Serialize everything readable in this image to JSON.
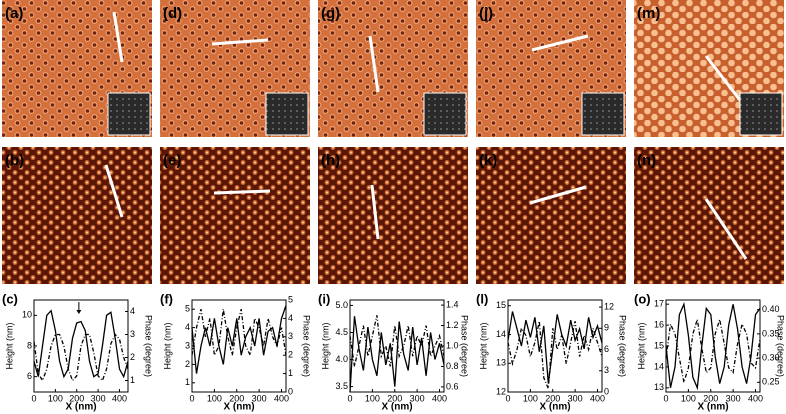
{
  "panels": [
    {
      "label": "(a)"
    },
    {
      "label": "(b)"
    },
    {
      "label": "(d)"
    },
    {
      "label": "(e)"
    },
    {
      "label": "(g)"
    },
    {
      "label": "(h)"
    },
    {
      "label": "(j)"
    },
    {
      "label": "(k)"
    },
    {
      "label": "(m)"
    },
    {
      "label": "(n)"
    }
  ],
  "chart_data": [
    {
      "type": "line",
      "label": "(c)",
      "xlabel": "X (nm)",
      "ylabel": "Height (nm)",
      "y2label": "Phase (degree)",
      "x": [
        0,
        20,
        40,
        60,
        80,
        100,
        120,
        140,
        160,
        180,
        200,
        220,
        240,
        260,
        280,
        300,
        320,
        340,
        360,
        380,
        400,
        420,
        440
      ],
      "xlim": [
        0,
        440
      ],
      "xticks": [
        0,
        100,
        200,
        300,
        400
      ],
      "ylim": [
        5,
        11
      ],
      "yticks": [
        6,
        8,
        10
      ],
      "y2lim": [
        0.5,
        4.5
      ],
      "y2ticks": [
        1,
        2,
        3,
        4
      ],
      "series": [
        {
          "color": "#000000",
          "dash": "solid",
          "values": [
            7,
            6,
            8,
            10,
            10.3,
            9,
            7,
            6,
            6.5,
            8.5,
            9.5,
            9.6,
            9,
            7,
            6,
            6.2,
            8,
            10,
            10.2,
            8.5,
            6.5,
            6,
            7
          ]
        },
        {
          "color": "#000000",
          "dash": "dashdot",
          "axis": "y2",
          "values": [
            2.7,
            1.3,
            1,
            1.5,
            2.5,
            3,
            3,
            2.5,
            1.5,
            1,
            1.2,
            2.5,
            3,
            3,
            2.2,
            1.2,
            1,
            1.5,
            2.6,
            3,
            2.8,
            2,
            1.5
          ]
        }
      ]
    },
    {
      "type": "line",
      "label": "(f)",
      "xlabel": "X (nm)",
      "ylabel": "Height (nm)",
      "y2label": "Phase (degree)",
      "x": [
        0,
        20,
        40,
        60,
        80,
        100,
        120,
        140,
        160,
        180,
        200,
        220,
        240,
        260,
        280,
        300,
        320,
        340,
        360,
        380,
        400,
        420
      ],
      "xlim": [
        0,
        420
      ],
      "xticks": [
        0,
        100,
        200,
        300,
        400
      ],
      "ylim": [
        0.5,
        5.5
      ],
      "yticks": [
        1,
        2,
        3,
        4,
        5
      ],
      "y2lim": [
        0,
        5
      ],
      "y2ticks": [
        0,
        1,
        2,
        3,
        4,
        5
      ],
      "series": [
        {
          "color": "#000000",
          "dash": "solid",
          "values": [
            4,
            1.5,
            3,
            4,
            3,
            4.5,
            3,
            2,
            4,
            3,
            4.5,
            2.5,
            3.5,
            4,
            3,
            4.5,
            2.5,
            3.8,
            4,
            3,
            4.5,
            5.2
          ]
        },
        {
          "color": "#000000",
          "dash": "dashdot",
          "axis": "y2",
          "values": [
            2,
            3.5,
            4.5,
            3,
            4,
            2,
            2.5,
            4.5,
            3,
            2,
            3.5,
            4.5,
            2.5,
            2,
            4,
            3.5,
            2.5,
            4,
            3,
            2.5,
            3.5,
            2
          ]
        }
      ]
    },
    {
      "type": "line",
      "label": "(i)",
      "xlabel": "X (nm)",
      "ylabel": "Height (nm)",
      "y2label": "Phase (degree)",
      "x": [
        0,
        20,
        40,
        60,
        80,
        100,
        120,
        140,
        160,
        180,
        200,
        220,
        240,
        260,
        280,
        300,
        320,
        340,
        360,
        380,
        400,
        420
      ],
      "xlim": [
        0,
        420
      ],
      "xticks": [
        0,
        100,
        200,
        300,
        400
      ],
      "ylim": [
        3.4,
        5.1
      ],
      "yticks": [
        {
          "value": 3.5,
          "label": "3.5"
        },
        {
          "value": 4,
          "label": "4.0"
        },
        {
          "value": 4.5,
          "label": "4.5"
        },
        {
          "value": 5,
          "label": "5.0"
        }
      ],
      "y2lim": [
        0.55,
        1.45
      ],
      "y2ticks": [
        0.6,
        0.8,
        {
          "value": 1,
          "label": "1.0"
        },
        1.2,
        1.4
      ],
      "series": [
        {
          "color": "#000000",
          "dash": "solid",
          "values": [
            3.4,
            4.8,
            4.2,
            3.8,
            4.6,
            4.0,
            3.7,
            4.5,
            3.9,
            4.3,
            3.5,
            4.7,
            4.1,
            3.8,
            4.6,
            3.9,
            4.4,
            3.7,
            4.5,
            4.0,
            4.3,
            3.9
          ]
        },
        {
          "color": "#000000",
          "dash": "dashdot",
          "axis": "y2",
          "values": [
            1.1,
            0.8,
            1.0,
            1.2,
            0.9,
            1.1,
            1.3,
            0.9,
            1.0,
            0.8,
            1.2,
            0.9,
            1.0,
            1.2,
            0.9,
            1.1,
            1.0,
            1.2,
            0.9,
            1.0,
            1.1,
            0.9
          ]
        }
      ]
    },
    {
      "type": "line",
      "label": "(l)",
      "xlabel": "X (nm)",
      "ylabel": "Height (nm)",
      "y2label": "Phase (degree)",
      "x": [
        0,
        20,
        40,
        60,
        80,
        100,
        120,
        140,
        160,
        180,
        200,
        220,
        240,
        260,
        280,
        300,
        320,
        340,
        360,
        380,
        400,
        420
      ],
      "xlim": [
        0,
        420
      ],
      "xticks": [
        0,
        100,
        200,
        300,
        400
      ],
      "ylim": [
        12,
        15.2
      ],
      "yticks": [
        12,
        13,
        14,
        15
      ],
      "y2lim": [
        0,
        13
      ],
      "y2ticks": [
        0,
        3,
        6,
        9,
        12
      ],
      "series": [
        {
          "color": "#000000",
          "dash": "solid",
          "values": [
            13.8,
            14.8,
            14.2,
            13.6,
            14.5,
            13.9,
            14.6,
            13.4,
            14.3,
            12.3,
            13.5,
            14.7,
            14.0,
            13.6,
            14.5,
            13.8,
            14.2,
            13.5,
            14.6,
            13.9,
            14.3,
            13.7
          ]
        },
        {
          "color": "#000000",
          "dash": "dashdot",
          "axis": "y2",
          "values": [
            7,
            4,
            6,
            9,
            8,
            5,
            7,
            10,
            2,
            0.5,
            9,
            6,
            8,
            4,
            7,
            10,
            5,
            8,
            6,
            9,
            7,
            5
          ]
        }
      ]
    },
    {
      "type": "line",
      "label": "(o)",
      "xlabel": "X (nm)",
      "ylabel": "Height (nm)",
      "y2label": "Phase (degree)",
      "x": [
        0,
        20,
        40,
        60,
        80,
        100,
        120,
        140,
        160,
        180,
        200,
        220,
        240,
        260,
        280,
        300,
        320,
        340,
        360,
        380,
        400,
        420
      ],
      "xlim": [
        0,
        420
      ],
      "xticks": [
        0,
        100,
        200,
        300,
        400
      ],
      "ylim": [
        12.8,
        17.2
      ],
      "yticks": [
        13,
        14,
        15,
        16,
        17
      ],
      "y2lim": [
        0.23,
        0.42
      ],
      "y2ticks": [
        0.25,
        {
          "value": 0.3,
          "label": "0.30"
        },
        0.35,
        {
          "value": 0.4,
          "label": "0.40"
        }
      ],
      "series": [
        {
          "color": "#000000",
          "dash": "solid",
          "values": [
            15,
            13,
            14,
            16.5,
            17,
            15.5,
            13.5,
            13,
            15,
            16.8,
            16.5,
            14.5,
            13.2,
            14,
            16,
            17,
            15.8,
            14,
            13.2,
            14.5,
            16.5,
            16.8
          ]
        },
        {
          "color": "#000000",
          "dash": "dashdot",
          "axis": "y2",
          "values": [
            0.3,
            0.37,
            0.35,
            0.3,
            0.25,
            0.28,
            0.35,
            0.38,
            0.32,
            0.27,
            0.28,
            0.35,
            0.38,
            0.33,
            0.28,
            0.27,
            0.33,
            0.37,
            0.35,
            0.29,
            0.28,
            0.34
          ]
        }
      ]
    }
  ]
}
